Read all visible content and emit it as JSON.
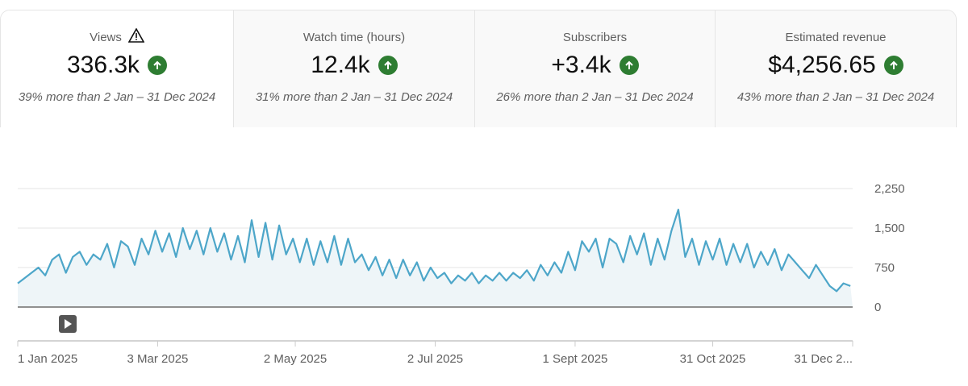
{
  "metrics": [
    {
      "title": "Views",
      "value": "336.3k",
      "comparison": "39% more than 2 Jan – 31 Dec 2024",
      "icon": "warning-icon",
      "trend": "up"
    },
    {
      "title": "Watch time (hours)",
      "value": "12.4k",
      "comparison": "31% more than 2 Jan – 31 Dec 2024",
      "trend": "up"
    },
    {
      "title": "Subscribers",
      "value": "+3.4k",
      "comparison": "26% more than 2 Jan – 31 Dec 2024",
      "trend": "up"
    },
    {
      "title": "Estimated revenue",
      "value": "$4,256.65",
      "comparison": "43% more than 2 Jan – 31 Dec 2024",
      "trend": "up"
    }
  ],
  "colors": {
    "line": "#4da6c9",
    "fill": "#eef5f8",
    "up": "#2e7d32"
  },
  "chart_data": {
    "type": "area",
    "title": "Views",
    "x_range_days": [
      0,
      364
    ],
    "sample_interval_days": 3,
    "ylim": [
      0,
      2250
    ],
    "yticks": [
      {
        "v": 0,
        "label": "0"
      },
      {
        "v": 750,
        "label": "750"
      },
      {
        "v": 1500,
        "label": "1,500"
      },
      {
        "v": 2250,
        "label": "2,250"
      }
    ],
    "xticks": [
      {
        "day": 0,
        "label": "1 Jan 2025"
      },
      {
        "day": 61,
        "label": "3 Mar 2025"
      },
      {
        "day": 121,
        "label": "2 May 2025"
      },
      {
        "day": 182,
        "label": "2 Jul 2025"
      },
      {
        "day": 243,
        "label": "1 Sept 2025"
      },
      {
        "day": 303,
        "label": "31 Oct 2025"
      },
      {
        "day": 364,
        "label": "31 Dec 2..."
      }
    ],
    "values": [
      450,
      550,
      650,
      750,
      600,
      900,
      1000,
      650,
      950,
      1050,
      800,
      1000,
      900,
      1200,
      750,
      1250,
      1150,
      800,
      1300,
      1000,
      1450,
      1050,
      1400,
      950,
      1500,
      1100,
      1450,
      1000,
      1500,
      1050,
      1400,
      900,
      1350,
      850,
      1650,
      950,
      1600,
      900,
      1550,
      1000,
      1300,
      850,
      1300,
      800,
      1250,
      850,
      1350,
      800,
      1300,
      850,
      1000,
      700,
      950,
      600,
      900,
      550,
      900,
      600,
      850,
      500,
      750,
      550,
      650,
      450,
      600,
      500,
      650,
      450,
      600,
      500,
      650,
      500,
      650,
      550,
      700,
      500,
      800,
      600,
      850,
      650,
      1050,
      700,
      1250,
      1050,
      1300,
      750,
      1300,
      1200,
      850,
      1350,
      1000,
      1400,
      800,
      1300,
      900,
      1450,
      1850,
      950,
      1300,
      800,
      1250,
      900,
      1300,
      800,
      1200,
      850,
      1200,
      750,
      1050,
      800,
      1100,
      700,
      1000,
      850,
      700,
      550,
      800,
      600,
      400,
      300,
      450,
      400
    ]
  }
}
